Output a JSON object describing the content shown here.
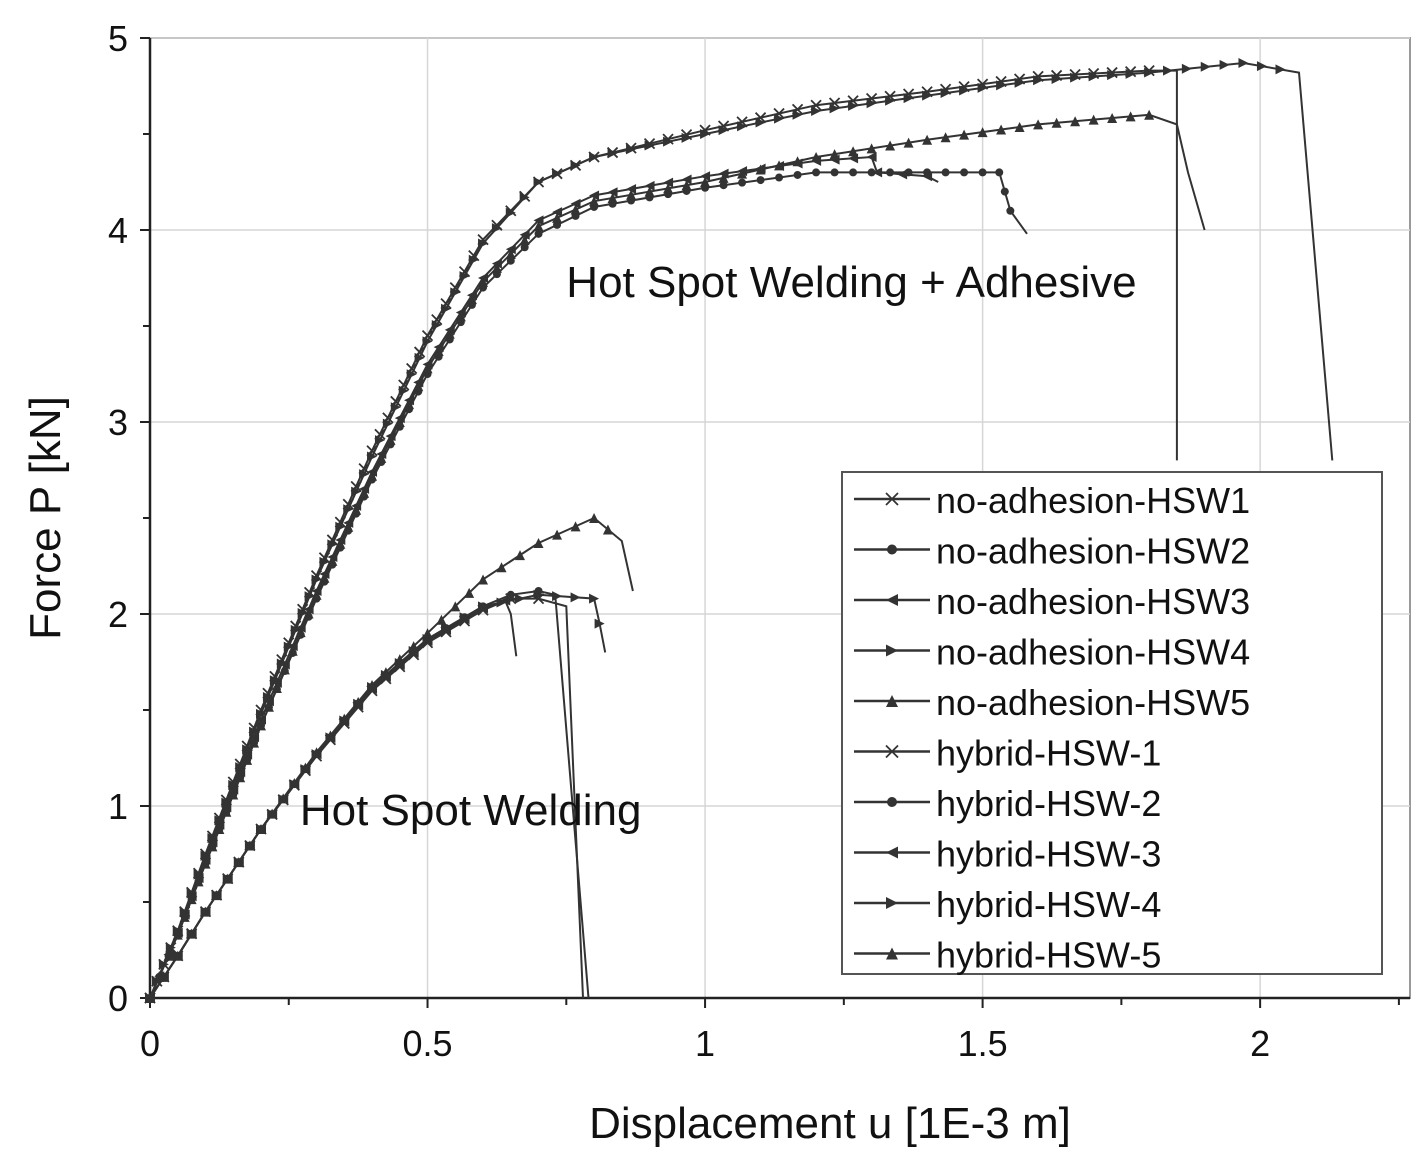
{
  "chart_data": {
    "type": "line",
    "xlabel": "Displacement u [1E-3 m]",
    "ylabel": "Force P [kN]",
    "xlim": [
      0,
      2.27
    ],
    "ylim": [
      0,
      5
    ],
    "x_ticks": [
      0,
      0.5,
      1,
      1.5,
      2
    ],
    "x_tick_labels": [
      "0",
      "0.5",
      "1",
      "1.5",
      "2"
    ],
    "y_ticks": [
      0,
      1,
      2,
      3,
      4,
      5
    ],
    "y_tick_labels": [
      "0",
      "1",
      "2",
      "3",
      "4",
      "5"
    ],
    "grid": true,
    "legend_position": "bottom-right",
    "line_color": "#333333",
    "annotations": [
      {
        "text": "Hot Spot Welding + Adhesive",
        "x": 0.75,
        "y": 3.65
      },
      {
        "text": "Hot Spot Welding",
        "x": 0.27,
        "y": 0.9
      }
    ],
    "series": [
      {
        "name": "no-adhesion-HSW1",
        "marker": "x",
        "x": [
          0,
          0.05,
          0.1,
          0.2,
          0.3,
          0.4,
          0.5,
          0.6,
          0.65,
          0.7,
          0.75,
          0.78
        ],
        "y": [
          0,
          0.22,
          0.45,
          0.88,
          1.26,
          1.6,
          1.85,
          2.02,
          2.08,
          2.08,
          2.04,
          0
        ]
      },
      {
        "name": "no-adhesion-HSW2",
        "marker": "circle",
        "x": [
          0,
          0.05,
          0.1,
          0.2,
          0.3,
          0.4,
          0.5,
          0.6,
          0.65,
          0.7,
          0.73,
          0.79
        ],
        "y": [
          0,
          0.22,
          0.45,
          0.88,
          1.27,
          1.62,
          1.87,
          2.04,
          2.1,
          2.12,
          2.1,
          0
        ]
      },
      {
        "name": "no-adhesion-HSW3",
        "marker": "triangle-left",
        "x": [
          0,
          0.05,
          0.1,
          0.2,
          0.3,
          0.4,
          0.5,
          0.6,
          0.64,
          0.65,
          0.66
        ],
        "y": [
          0,
          0.22,
          0.45,
          0.88,
          1.27,
          1.61,
          1.86,
          2.03,
          2.07,
          2.0,
          1.78
        ]
      },
      {
        "name": "no-adhesion-HSW4",
        "marker": "triangle-right",
        "x": [
          0,
          0.05,
          0.1,
          0.2,
          0.3,
          0.4,
          0.5,
          0.6,
          0.7,
          0.8,
          0.81,
          0.82
        ],
        "y": [
          0,
          0.22,
          0.45,
          0.88,
          1.27,
          1.62,
          1.87,
          2.04,
          2.1,
          2.08,
          1.95,
          1.8
        ]
      },
      {
        "name": "no-adhesion-HSW5",
        "marker": "triangle-up",
        "x": [
          0,
          0.05,
          0.1,
          0.2,
          0.3,
          0.4,
          0.5,
          0.6,
          0.7,
          0.8,
          0.85,
          0.87
        ],
        "y": [
          0,
          0.22,
          0.45,
          0.88,
          1.28,
          1.63,
          1.9,
          2.18,
          2.37,
          2.5,
          2.38,
          2.12
        ]
      },
      {
        "name": "hybrid-HSW-1",
        "marker": "x",
        "x": [
          0,
          0.05,
          0.1,
          0.2,
          0.3,
          0.4,
          0.5,
          0.6,
          0.7,
          0.8,
          1.0,
          1.2,
          1.4,
          1.6,
          1.8,
          1.85,
          1.85
        ],
        "y": [
          0,
          0.35,
          0.75,
          1.5,
          2.2,
          2.85,
          3.45,
          3.95,
          4.25,
          4.38,
          4.52,
          4.65,
          4.72,
          4.8,
          4.83,
          4.83,
          2.8
        ]
      },
      {
        "name": "hybrid-HSW-2",
        "marker": "circle",
        "x": [
          0,
          0.05,
          0.1,
          0.2,
          0.3,
          0.4,
          0.5,
          0.6,
          0.7,
          0.8,
          1.0,
          1.2,
          1.4,
          1.5,
          1.53,
          1.55,
          1.58
        ],
        "y": [
          0,
          0.33,
          0.7,
          1.42,
          2.08,
          2.7,
          3.25,
          3.7,
          3.98,
          4.12,
          4.22,
          4.3,
          4.3,
          4.3,
          4.3,
          4.1,
          3.98
        ]
      },
      {
        "name": "hybrid-HSW-3",
        "marker": "triangle-left",
        "x": [
          0,
          0.05,
          0.1,
          0.2,
          0.3,
          0.4,
          0.5,
          0.6,
          0.7,
          0.8,
          1.0,
          1.2,
          1.3,
          1.31,
          1.4,
          1.42
        ],
        "y": [
          0,
          0.34,
          0.72,
          1.45,
          2.12,
          2.74,
          3.3,
          3.75,
          4.05,
          4.18,
          4.28,
          4.36,
          4.38,
          4.3,
          4.28,
          4.25
        ]
      },
      {
        "name": "hybrid-HSW-4",
        "marker": "triangle-right",
        "x": [
          0,
          0.05,
          0.1,
          0.2,
          0.3,
          0.4,
          0.5,
          0.6,
          0.7,
          0.8,
          1.0,
          1.2,
          1.4,
          1.6,
          1.8,
          1.97,
          2.07,
          2.13
        ],
        "y": [
          0,
          0.35,
          0.74,
          1.48,
          2.18,
          2.82,
          3.42,
          3.93,
          4.25,
          4.38,
          4.5,
          4.62,
          4.7,
          4.78,
          4.82,
          4.87,
          4.82,
          2.8
        ]
      },
      {
        "name": "hybrid-HSW-5",
        "marker": "triangle-up",
        "x": [
          0,
          0.05,
          0.1,
          0.2,
          0.3,
          0.4,
          0.5,
          0.6,
          0.7,
          0.8,
          1.0,
          1.2,
          1.4,
          1.6,
          1.8,
          1.85,
          1.87,
          1.9
        ],
        "y": [
          0,
          0.33,
          0.7,
          1.42,
          2.1,
          2.72,
          3.28,
          3.73,
          4.02,
          4.15,
          4.25,
          4.38,
          4.47,
          4.55,
          4.6,
          4.55,
          4.3,
          4.0
        ]
      }
    ]
  }
}
